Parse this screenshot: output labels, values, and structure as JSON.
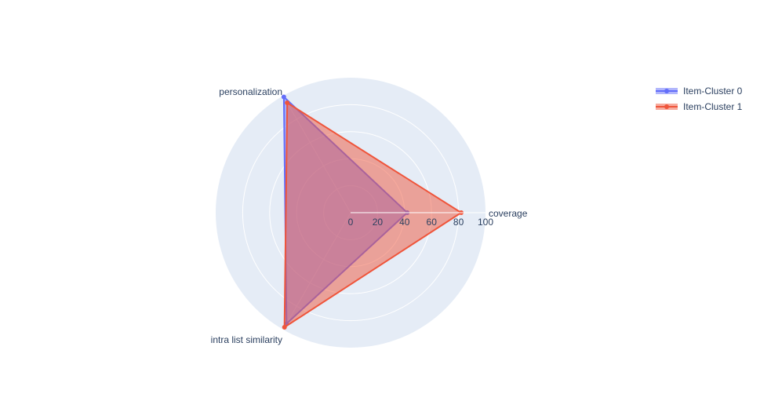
{
  "chart_data": {
    "type": "radar",
    "axes": [
      "coverage",
      "personalization",
      "intra list similarity"
    ],
    "radial_range": [
      0,
      100
    ],
    "radial_ticks": [
      0,
      20,
      40,
      60,
      80,
      100
    ],
    "legend_position": "top-right",
    "series": [
      {
        "name": "Item-Cluster 0",
        "color": "#636efa",
        "values": [
          42,
          99,
          95
        ]
      },
      {
        "name": "Item-Cluster 1",
        "color": "#ef553b",
        "values": [
          82,
          94,
          98
        ]
      }
    ]
  }
}
